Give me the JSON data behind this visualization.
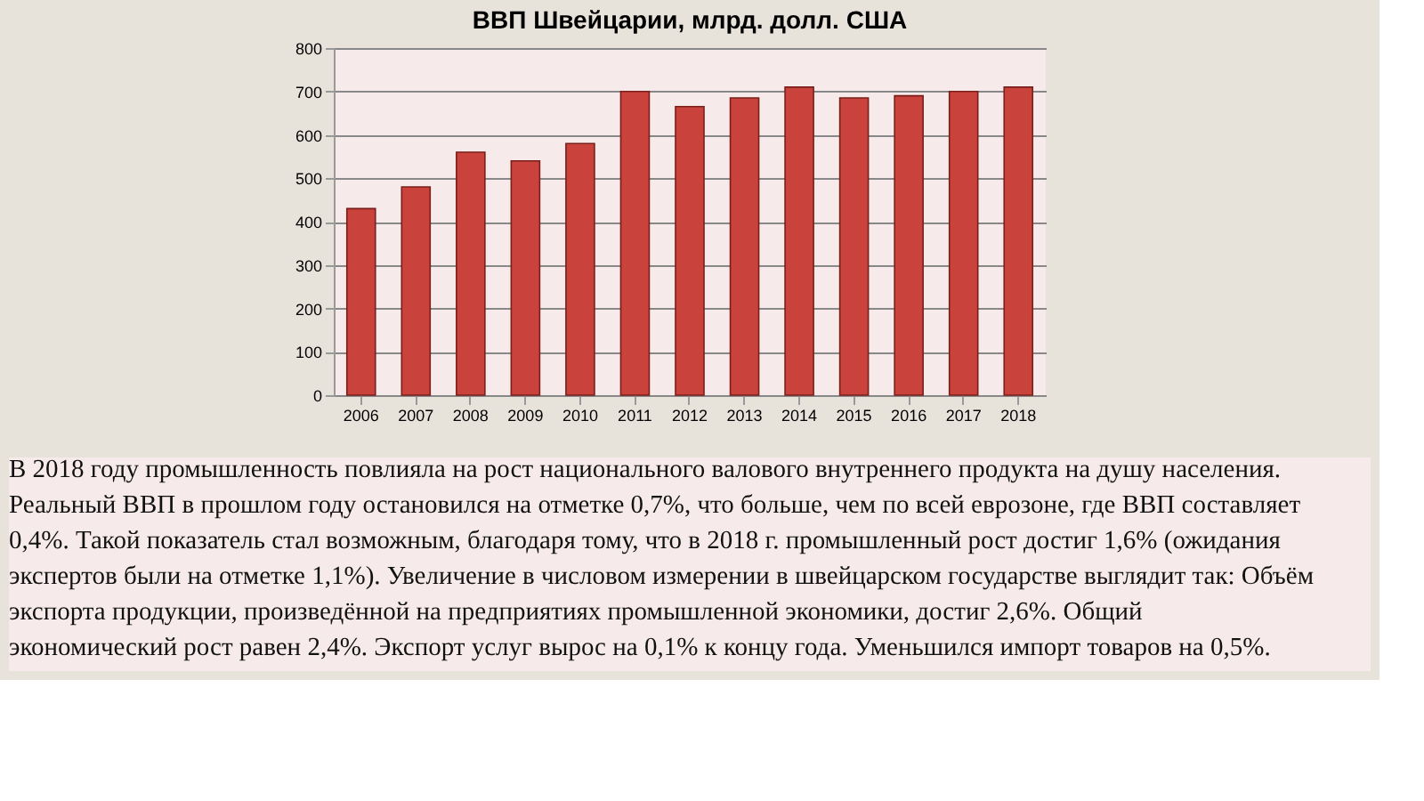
{
  "chart_data": {
    "type": "bar",
    "title": "ВВП Швейцарии, млрд. долл. США",
    "categories": [
      "2006",
      "2007",
      "2008",
      "2009",
      "2010",
      "2011",
      "2012",
      "2013",
      "2014",
      "2015",
      "2016",
      "2017",
      "2018"
    ],
    "values": [
      430,
      480,
      560,
      540,
      580,
      700,
      665,
      685,
      710,
      685,
      690,
      700,
      710
    ],
    "color": "#c9423c",
    "ylim": [
      0,
      800
    ],
    "yticks": [
      0,
      100,
      200,
      300,
      400,
      500,
      600,
      700,
      800
    ],
    "grid": "y",
    "annotations": [
      "В 2018 году промышленность повлияла на рост национального валового внутреннего продукта на душу населения.",
      "Реальный ВВП в прошлом году остановился на отметке 0,7%, что больше, чем по всей еврозоне, где ВВП составляет",
      "0,4%. Такой показатель стал возможным, благодаря тому, что в 2018 г. промышленный рост достиг 1,6% (ожидания",
      "экспертов были на отметке 1,1%). Увеличение в числовом измерении в швейцарском государстве выглядит так: Объём",
      "экспорта продукции, произведённой на предприятиях промышленной экономики, достиг 2,6%. Общий",
      "экономический рост равен 2,4%. Экспорт услуг вырос на 0,1% к концу года. Уменьшился импорт товаров на 0,5%."
    ]
  }
}
